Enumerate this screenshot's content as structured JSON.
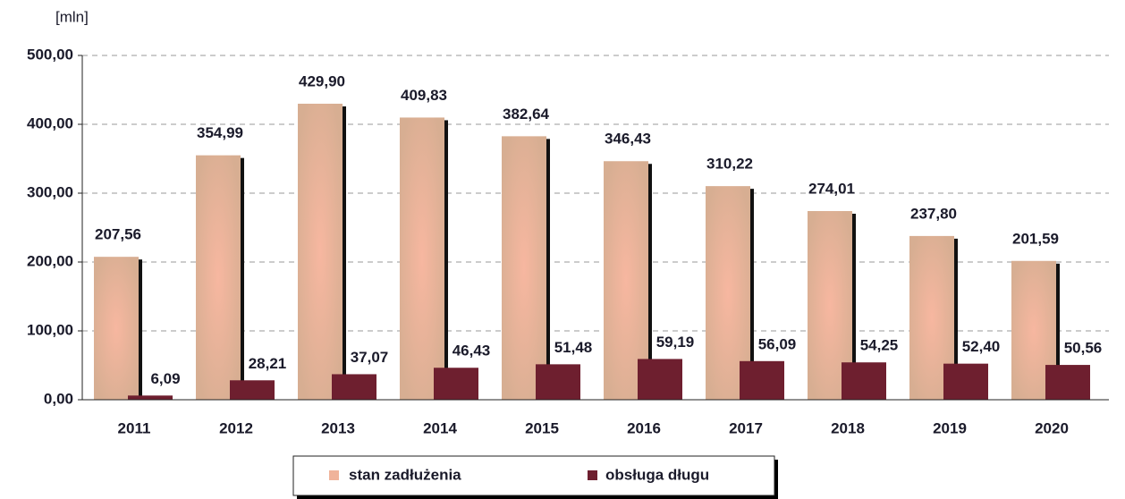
{
  "chart_data": {
    "type": "bar",
    "y_label": "[mln]",
    "categories": [
      "2011",
      "2012",
      "2013",
      "2014",
      "2015",
      "2016",
      "2017",
      "2018",
      "2019",
      "2020"
    ],
    "series": [
      {
        "name": "stan zadłużenia",
        "color": "#dcae8e",
        "values": [
          207.56,
          354.99,
          429.9,
          409.83,
          382.64,
          346.43,
          310.22,
          274.01,
          237.8,
          201.59
        ],
        "value_labels": [
          "207,56",
          "354,99",
          "429,90",
          "409,83",
          "382,64",
          "346,43",
          "310,22",
          "274,01",
          "237,80",
          "201,59"
        ]
      },
      {
        "name": "obsługa długu",
        "color": "#6e1f2f",
        "values": [
          6.09,
          28.21,
          37.07,
          46.43,
          51.48,
          59.19,
          56.09,
          54.25,
          52.4,
          50.56
        ],
        "value_labels": [
          "6,09",
          "28,21",
          "37,07",
          "46,43",
          "51,48",
          "59,19",
          "56,09",
          "54,25",
          "52,40",
          "50,56"
        ]
      }
    ],
    "ylim": [
      0,
      500
    ],
    "yticks": [
      {
        "value": 0,
        "label": "0,00"
      },
      {
        "value": 100,
        "label": "100,00"
      },
      {
        "value": 200,
        "label": "200,00"
      },
      {
        "value": 300,
        "label": "300,00"
      },
      {
        "value": 400,
        "label": "400,00"
      },
      {
        "value": 500,
        "label": "500,00"
      }
    ],
    "grid": true,
    "legend": "bottom"
  }
}
